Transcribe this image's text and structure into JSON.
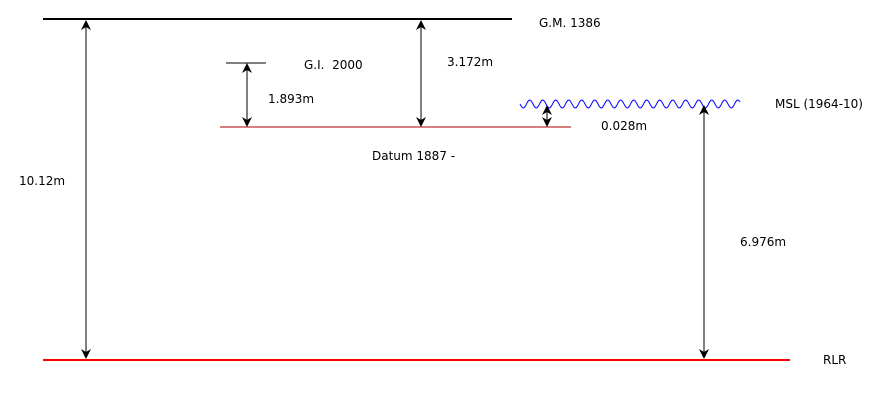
{
  "labels": {
    "gm": "G.M. 1386",
    "gi": "G.I.  2000",
    "msl": "MSL (1964-10)",
    "datum": "Datum 1887 -",
    "rlr": "RLR"
  },
  "measurements": {
    "gm_to_rlr": "10.12m",
    "gi_to_datum": "1.893m",
    "gm_to_datum": "3.172m",
    "msl_to_datum": "0.028m",
    "msl_to_rlr": "6.976m"
  },
  "colors": {
    "gm_line": "#000000",
    "gi_line": "#000000",
    "datum_line": "#b00000",
    "rlr_line": "#ff0000",
    "msl_wave": "#0000ff",
    "arrows": "#000000"
  }
}
